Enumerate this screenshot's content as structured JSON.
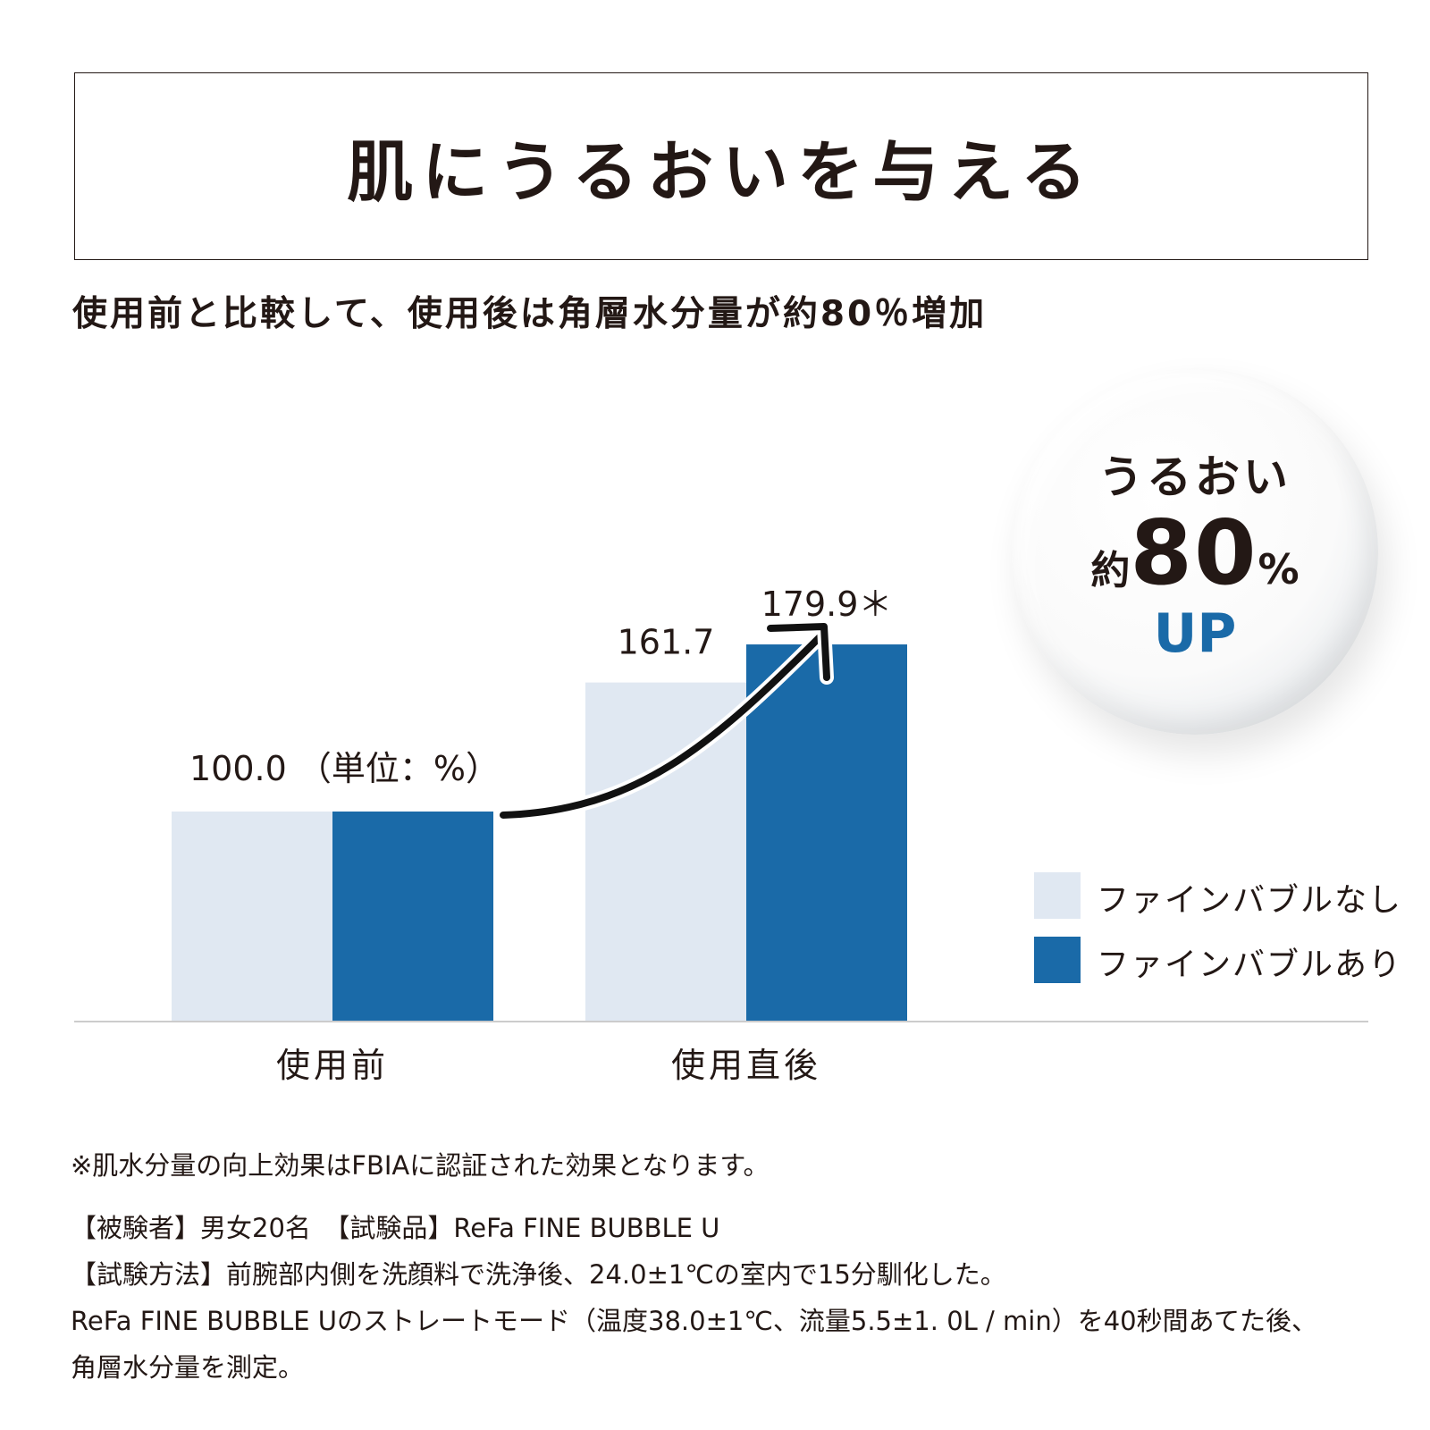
{
  "title": "肌にうるおいを与える",
  "subtitle": "使用前と比較して、使用後は角層水分量が約80％増加",
  "chart_data": {
    "type": "bar",
    "categories": [
      "使用前",
      "使用直後"
    ],
    "series": [
      {
        "name": "ファインバブルなし",
        "values": [
          100.0,
          161.7
        ],
        "color": "#e0e8f2"
      },
      {
        "name": "ファインバブルあり",
        "values": [
          100.0,
          179.9
        ],
        "color": "#1a6aa8"
      }
    ],
    "value_labels": [
      "100.0",
      "161.7",
      "179.9＊"
    ],
    "unit_label": "（単位：%）",
    "ylim": [
      0,
      200
    ],
    "legend_position": "right",
    "grid": false
  },
  "badge": {
    "line1": "うるおい",
    "prefix": "約",
    "number": "80",
    "percent": "%",
    "suffix": "UP",
    "accent_color": "#1a6aa8"
  },
  "notes": {
    "footnote": "※肌水分量の向上効果はFBIAに認証された効果となります。",
    "subjects": "【被験者】男女20名　【試験品】ReFa FINE BUBBLE U",
    "method": "【試験方法】前腕部内側を洗顔料で洗浄後、24.0±1℃の室内で15分馴化した。",
    "method2": "ReFa FINE BUBBLE Uのストレートモード（温度38.0±1℃、流量5.5±1. 0L / min）を40秒間あてた後、",
    "method3": "角層水分量を測定。"
  }
}
